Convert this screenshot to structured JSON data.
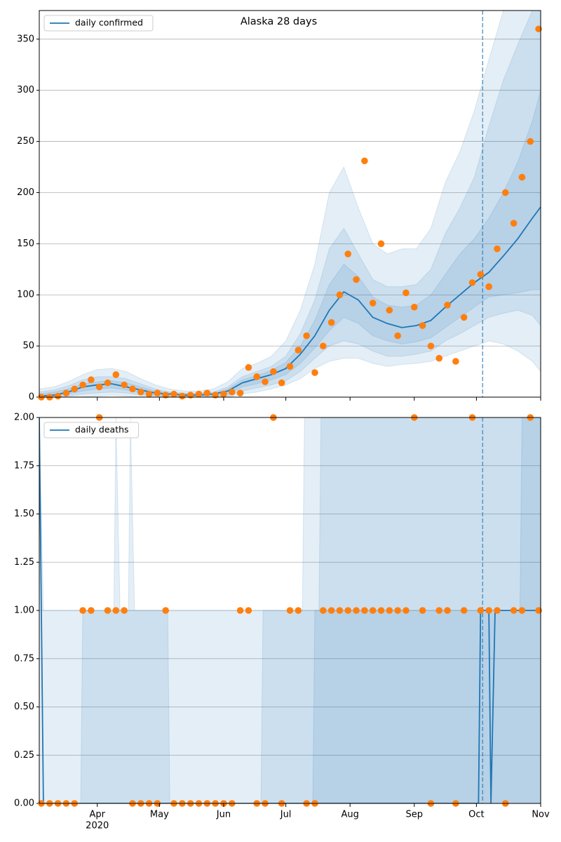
{
  "chart_data": [
    {
      "type": "line",
      "title": "Alaska 28 days",
      "xlim": [
        "2020-03-04",
        "2020-11-01"
      ],
      "ylim": [
        0,
        378
      ],
      "yticks": [
        0,
        50,
        100,
        150,
        200,
        250,
        300,
        350
      ],
      "grid": true,
      "legend": "upper left",
      "vline": "2020-10-04",
      "vline_color": "#1f77b4",
      "series": [
        {
          "name": "daily confirmed",
          "color": "#1f77b4",
          "x": [
            "2020-03-04",
            "2020-03-11",
            "2020-03-18",
            "2020-03-25",
            "2020-04-01",
            "2020-04-08",
            "2020-04-15",
            "2020-04-22",
            "2020-04-29",
            "2020-05-06",
            "2020-05-13",
            "2020-05-20",
            "2020-05-27",
            "2020-06-03",
            "2020-06-10",
            "2020-06-17",
            "2020-06-24",
            "2020-07-01",
            "2020-07-08",
            "2020-07-15",
            "2020-07-22",
            "2020-07-29",
            "2020-08-05",
            "2020-08-12",
            "2020-08-19",
            "2020-08-26",
            "2020-09-02",
            "2020-09-09",
            "2020-09-16",
            "2020-09-23",
            "2020-09-30",
            "2020-10-07",
            "2020-10-14",
            "2020-10-21",
            "2020-10-28",
            "2020-11-01"
          ],
          "values": [
            1,
            2,
            5,
            10,
            12,
            13,
            10,
            7,
            4,
            3,
            2,
            2,
            3,
            6,
            14,
            18,
            22,
            28,
            42,
            60,
            85,
            103,
            95,
            78,
            72,
            68,
            70,
            75,
            88,
            100,
            112,
            122,
            138,
            155,
            175,
            186
          ]
        }
      ],
      "points": {
        "color": "#ff7f0e",
        "x": [
          "2020-03-05",
          "2020-03-09",
          "2020-03-13",
          "2020-03-17",
          "2020-03-21",
          "2020-03-25",
          "2020-03-29",
          "2020-04-02",
          "2020-04-06",
          "2020-04-10",
          "2020-04-14",
          "2020-04-18",
          "2020-04-22",
          "2020-04-26",
          "2020-04-30",
          "2020-05-04",
          "2020-05-08",
          "2020-05-12",
          "2020-05-16",
          "2020-05-20",
          "2020-05-24",
          "2020-05-28",
          "2020-06-01",
          "2020-06-05",
          "2020-06-09",
          "2020-06-13",
          "2020-06-17",
          "2020-06-21",
          "2020-06-25",
          "2020-06-29",
          "2020-07-03",
          "2020-07-07",
          "2020-07-11",
          "2020-07-15",
          "2020-07-19",
          "2020-07-23",
          "2020-07-27",
          "2020-07-31",
          "2020-08-04",
          "2020-08-08",
          "2020-08-12",
          "2020-08-16",
          "2020-08-20",
          "2020-08-24",
          "2020-08-28",
          "2020-09-01",
          "2020-09-05",
          "2020-09-09",
          "2020-09-13",
          "2020-09-17",
          "2020-09-21",
          "2020-09-25",
          "2020-09-29",
          "2020-10-03",
          "2020-10-07",
          "2020-10-11",
          "2020-10-15",
          "2020-10-19",
          "2020-10-23",
          "2020-10-27",
          "2020-10-31"
        ],
        "values": [
          0,
          0,
          1,
          4,
          8,
          12,
          17,
          10,
          14,
          22,
          12,
          8,
          5,
          3,
          4,
          2,
          3,
          1,
          2,
          3,
          4,
          2,
          3,
          5,
          4,
          29,
          20,
          15,
          25,
          14,
          30,
          46,
          60,
          24,
          50,
          73,
          100,
          140,
          115,
          231,
          92,
          150,
          85,
          60,
          102,
          88,
          70,
          50,
          38,
          90,
          35,
          78,
          112,
          120,
          108,
          145,
          200,
          170,
          215,
          250,
          360
        ]
      },
      "bands": [
        {
          "color": "#1f77b4",
          "x": [
            "2020-03-04",
            "2020-03-11",
            "2020-03-18",
            "2020-03-25",
            "2020-04-01",
            "2020-04-08",
            "2020-04-15",
            "2020-04-22",
            "2020-04-29",
            "2020-05-06",
            "2020-05-13",
            "2020-05-20",
            "2020-05-27",
            "2020-06-03",
            "2020-06-10",
            "2020-06-17",
            "2020-06-24",
            "2020-07-01",
            "2020-07-08",
            "2020-07-15",
            "2020-07-22",
            "2020-07-29",
            "2020-08-05",
            "2020-08-12",
            "2020-08-19",
            "2020-08-26",
            "2020-09-02",
            "2020-09-09",
            "2020-09-16",
            "2020-09-23",
            "2020-09-30",
            "2020-10-07",
            "2020-10-14",
            "2020-10-21",
            "2020-10-28",
            "2020-11-01"
          ],
          "lower": [
            0,
            0,
            0,
            0,
            1,
            2,
            1,
            0,
            0,
            0,
            0,
            0,
            0,
            0,
            3,
            5,
            8,
            12,
            18,
            28,
            35,
            38,
            38,
            33,
            30,
            32,
            33,
            35,
            40,
            45,
            50,
            55,
            52,
            45,
            35,
            25
          ],
          "upper": [
            8,
            10,
            15,
            22,
            27,
            28,
            25,
            18,
            12,
            8,
            6,
            6,
            8,
            15,
            28,
            33,
            40,
            55,
            85,
            130,
            200,
            225,
            185,
            150,
            140,
            145,
            145,
            165,
            210,
            240,
            280,
            330,
            378,
            378,
            378,
            378
          ]
        },
        {
          "color": "#1f77b4",
          "x": [
            "2020-03-04",
            "2020-03-11",
            "2020-03-18",
            "2020-03-25",
            "2020-04-01",
            "2020-04-08",
            "2020-04-15",
            "2020-04-22",
            "2020-04-29",
            "2020-05-06",
            "2020-05-13",
            "2020-05-20",
            "2020-05-27",
            "2020-06-03",
            "2020-06-10",
            "2020-06-17",
            "2020-06-24",
            "2020-07-01",
            "2020-07-08",
            "2020-07-15",
            "2020-07-22",
            "2020-07-29",
            "2020-08-05",
            "2020-08-12",
            "2020-08-19",
            "2020-08-26",
            "2020-09-02",
            "2020-09-09",
            "2020-09-16",
            "2020-09-23",
            "2020-09-30",
            "2020-10-07",
            "2020-10-14",
            "2020-10-21",
            "2020-10-28",
            "2020-11-01"
          ],
          "lower": [
            0,
            0,
            1,
            3,
            4,
            5,
            4,
            2,
            1,
            0,
            0,
            0,
            0,
            1,
            6,
            9,
            12,
            16,
            25,
            38,
            50,
            55,
            52,
            45,
            40,
            40,
            42,
            45,
            55,
            62,
            70,
            78,
            82,
            85,
            80,
            70
          ],
          "upper": [
            5,
            7,
            11,
            17,
            20,
            20,
            18,
            13,
            8,
            5,
            4,
            4,
            5,
            10,
            20,
            25,
            30,
            40,
            62,
            95,
            145,
            165,
            140,
            115,
            108,
            108,
            110,
            125,
            160,
            185,
            215,
            265,
            310,
            345,
            378,
            378
          ]
        },
        {
          "color": "#1f77b4",
          "x": [
            "2020-03-04",
            "2020-03-11",
            "2020-03-18",
            "2020-03-25",
            "2020-04-01",
            "2020-04-08",
            "2020-04-15",
            "2020-04-22",
            "2020-04-29",
            "2020-05-06",
            "2020-05-13",
            "2020-05-20",
            "2020-05-27",
            "2020-06-03",
            "2020-06-10",
            "2020-06-17",
            "2020-06-24",
            "2020-07-01",
            "2020-07-08",
            "2020-07-15",
            "2020-07-22",
            "2020-07-29",
            "2020-08-05",
            "2020-08-12",
            "2020-08-19",
            "2020-08-26",
            "2020-09-02",
            "2020-09-09",
            "2020-09-16",
            "2020-09-23",
            "2020-09-30",
            "2020-10-07",
            "2020-10-14",
            "2020-10-21",
            "2020-10-28",
            "2020-11-01"
          ],
          "lower": [
            0,
            1,
            3,
            6,
            8,
            9,
            7,
            4,
            2,
            1,
            1,
            1,
            1,
            3,
            10,
            13,
            17,
            22,
            33,
            48,
            65,
            78,
            72,
            60,
            55,
            52,
            54,
            58,
            68,
            78,
            88,
            98,
            100,
            102,
            105,
            105
          ],
          "upper": [
            3,
            5,
            8,
            13,
            15,
            16,
            14,
            10,
            6,
            4,
            3,
            3,
            4,
            8,
            17,
            21,
            26,
            34,
            50,
            75,
            110,
            130,
            118,
            98,
            90,
            88,
            90,
            100,
            120,
            140,
            155,
            175,
            200,
            230,
            270,
            300
          ]
        }
      ]
    },
    {
      "type": "line",
      "xlim": [
        "2020-03-04",
        "2020-11-01"
      ],
      "ylim": [
        0,
        2
      ],
      "yticks": [
        {
          "value": 0,
          "label": "0.00"
        },
        {
          "value": 0.25,
          "label": "0.25"
        },
        {
          "value": 0.5,
          "label": "0.50"
        },
        {
          "value": 0.75,
          "label": "0.75"
        },
        {
          "value": 1,
          "label": "1.00"
        },
        {
          "value": 1.25,
          "label": "1.25"
        },
        {
          "value": 1.5,
          "label": "1.50"
        },
        {
          "value": 1.75,
          "label": "1.75"
        },
        {
          "value": 2,
          "label": "2.00"
        }
      ],
      "xticks": [
        {
          "value": "2020-04-01",
          "label": "Apr",
          "sublabel": "2020"
        },
        {
          "value": "2020-05-01",
          "label": "May"
        },
        {
          "value": "2020-06-01",
          "label": "Jun"
        },
        {
          "value": "2020-07-01",
          "label": "Jul"
        },
        {
          "value": "2020-08-01",
          "label": "Aug"
        },
        {
          "value": "2020-09-01",
          "label": "Sep"
        },
        {
          "value": "2020-10-01",
          "label": "Oct"
        },
        {
          "value": "2020-11-01",
          "label": "Nov"
        }
      ],
      "grid": true,
      "legend": "upper left",
      "vline": "2020-10-04",
      "vline_color": "#1f77b4",
      "series": [
        {
          "name": "daily deaths",
          "color": "#1f77b4",
          "x": [
            "2020-03-04",
            "2020-03-06",
            "2020-10-02",
            "2020-10-03",
            "2020-10-07",
            "2020-10-08",
            "2020-10-10",
            "2020-11-01"
          ],
          "values": [
            2,
            0,
            0,
            1,
            1,
            0,
            1,
            1
          ]
        }
      ],
      "points": {
        "color": "#ff7f0e",
        "x": [
          "2020-03-05",
          "2020-03-09",
          "2020-03-13",
          "2020-03-17",
          "2020-03-21",
          "2020-03-25",
          "2020-03-29",
          "2020-04-02",
          "2020-04-06",
          "2020-04-10",
          "2020-04-14",
          "2020-04-18",
          "2020-04-22",
          "2020-04-26",
          "2020-04-30",
          "2020-05-04",
          "2020-05-08",
          "2020-05-12",
          "2020-05-16",
          "2020-05-20",
          "2020-05-24",
          "2020-05-28",
          "2020-06-01",
          "2020-06-05",
          "2020-06-09",
          "2020-06-13",
          "2020-06-17",
          "2020-06-21",
          "2020-06-25",
          "2020-06-29",
          "2020-07-03",
          "2020-07-07",
          "2020-07-11",
          "2020-07-15",
          "2020-07-19",
          "2020-07-23",
          "2020-07-27",
          "2020-07-31",
          "2020-08-04",
          "2020-08-08",
          "2020-08-12",
          "2020-08-16",
          "2020-08-20",
          "2020-08-24",
          "2020-08-28",
          "2020-09-01",
          "2020-09-05",
          "2020-09-09",
          "2020-09-13",
          "2020-09-17",
          "2020-09-21",
          "2020-09-25",
          "2020-09-29",
          "2020-10-03",
          "2020-10-07",
          "2020-10-11",
          "2020-10-15",
          "2020-10-19",
          "2020-10-23",
          "2020-10-27",
          "2020-10-31"
        ],
        "values": [
          0,
          0,
          0,
          0,
          0,
          1,
          1,
          2,
          1,
          1,
          1,
          0,
          0,
          0,
          0,
          1,
          0,
          0,
          0,
          0,
          0,
          0,
          0,
          0,
          1,
          1,
          0,
          0,
          2,
          0,
          1,
          1,
          0,
          0,
          1,
          1,
          1,
          1,
          1,
          1,
          1,
          1,
          1,
          1,
          1,
          2,
          1,
          0,
          1,
          1,
          0,
          1,
          2,
          1,
          1,
          1,
          0,
          1,
          1,
          2,
          1
        ]
      },
      "bands": [
        {
          "color": "#1f77b4",
          "x": [
            "2020-03-04",
            "2020-03-06",
            "2020-04-09",
            "2020-04-10",
            "2020-04-12",
            "2020-04-16",
            "2020-04-17",
            "2020-04-19",
            "2020-07-09",
            "2020-07-10",
            "2020-11-01"
          ],
          "lower": [
            0,
            0,
            0,
            0,
            0,
            0,
            0,
            0,
            0,
            0,
            0
          ],
          "upper": [
            2,
            1,
            1,
            2,
            1,
            1,
            2,
            1,
            1,
            2,
            2
          ]
        },
        {
          "color": "#1f77b4",
          "x": [
            "2020-03-04",
            "2020-03-24",
            "2020-03-25",
            "2020-05-05",
            "2020-05-06",
            "2020-06-19",
            "2020-06-20",
            "2020-07-17",
            "2020-07-18",
            "2020-11-01"
          ],
          "lower": [
            0,
            0,
            0,
            0,
            0,
            0,
            0,
            0,
            0,
            0
          ],
          "upper": [
            0,
            0,
            1,
            1,
            0,
            0,
            1,
            1,
            2,
            2
          ]
        },
        {
          "color": "#1f77b4",
          "x": [
            "2020-03-04",
            "2020-07-14",
            "2020-07-15",
            "2020-10-22",
            "2020-10-23",
            "2020-11-01"
          ],
          "lower": [
            0,
            0,
            0,
            0,
            0,
            0
          ],
          "upper": [
            0,
            0,
            1,
            1,
            2,
            2
          ]
        }
      ]
    }
  ]
}
